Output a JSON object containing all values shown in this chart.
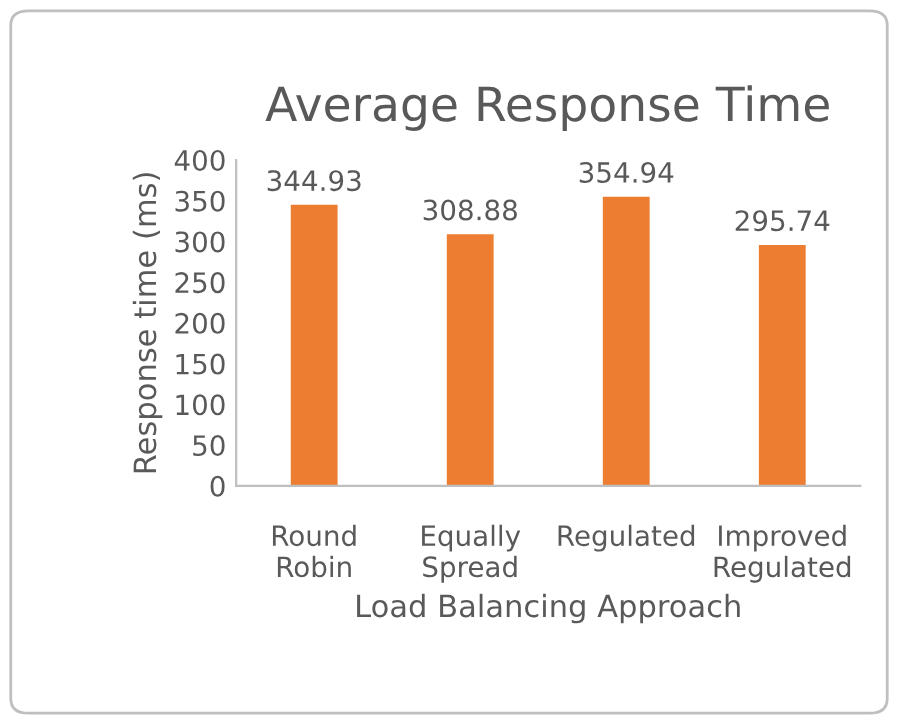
{
  "chart_data": {
    "type": "bar",
    "title": "Average Response Time",
    "xlabel": "Load Balancing Approach",
    "ylabel": "Response time (ms)",
    "categories": [
      "Round\nRobin",
      "Equally\nSpread",
      "Regulated",
      "Improved\nRegulated"
    ],
    "values": [
      344.93,
      308.88,
      354.94,
      295.74
    ],
    "color": "#ed7d31",
    "ylim": [
      0,
      400
    ],
    "yticks": [
      0,
      50,
      100,
      150,
      200,
      250,
      300,
      350,
      400
    ],
    "grid": false,
    "legend": false,
    "data_labels": true
  }
}
